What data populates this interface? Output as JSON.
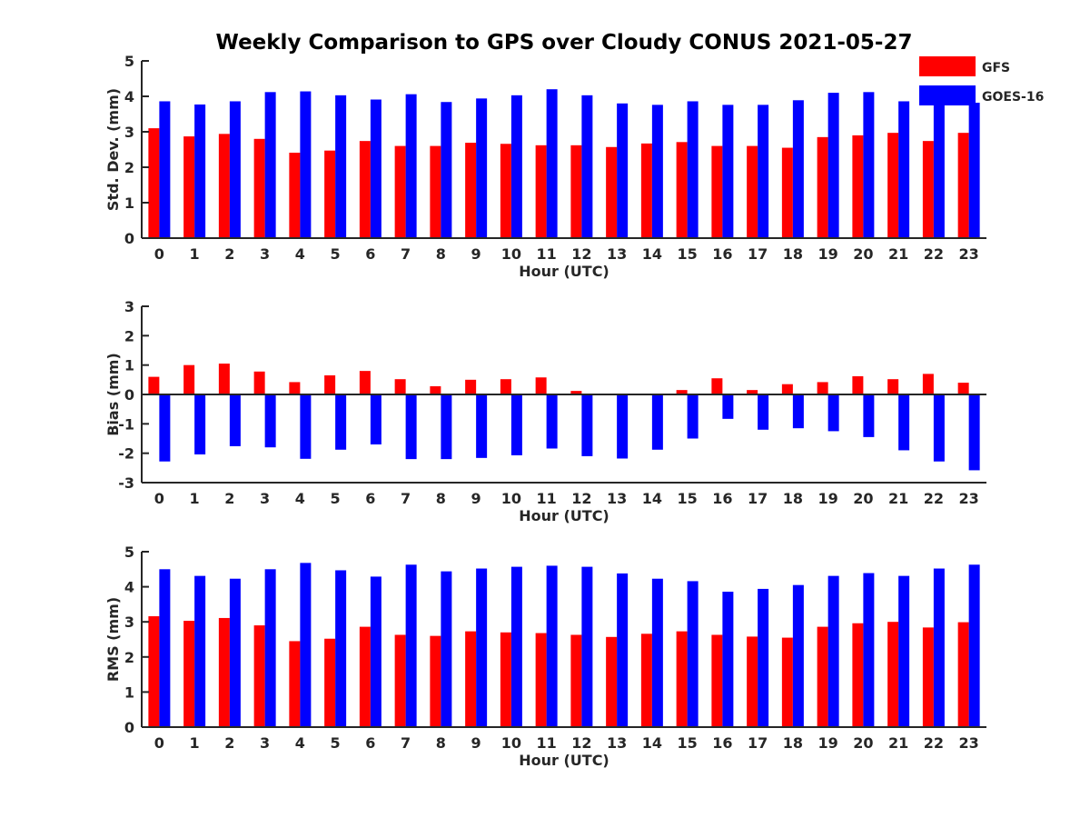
{
  "title": "Weekly Comparison to GPS over Cloudy CONUS 2021-05-27",
  "legend": [
    {
      "name": "GFS",
      "color": "#ff0000"
    },
    {
      "name": "GOES-16",
      "color": "#0000ff"
    }
  ],
  "chart_data": [
    {
      "type": "bar",
      "categories": [
        "0",
        "1",
        "2",
        "3",
        "4",
        "5",
        "6",
        "7",
        "8",
        "9",
        "10",
        "11",
        "12",
        "13",
        "14",
        "15",
        "16",
        "17",
        "18",
        "19",
        "20",
        "21",
        "22",
        "23"
      ],
      "xlabel": "Hour (UTC)",
      "ylabel": "Std. Dev. (mm)",
      "ylim": [
        0,
        5
      ],
      "yticks": [
        0,
        1,
        2,
        3,
        4,
        5
      ],
      "series": [
        {
          "name": "GFS",
          "color": "#ff0000",
          "values": [
            3.1,
            2.87,
            2.94,
            2.8,
            2.41,
            2.47,
            2.74,
            2.6,
            2.6,
            2.69,
            2.66,
            2.62,
            2.62,
            2.57,
            2.67,
            2.71,
            2.6,
            2.6,
            2.55,
            2.85,
            2.9,
            2.97,
            2.74,
            2.97
          ]
        },
        {
          "name": "GOES-16",
          "color": "#0000ff",
          "values": [
            3.86,
            3.77,
            3.86,
            4.12,
            4.14,
            4.03,
            3.91,
            4.06,
            3.84,
            3.94,
            4.03,
            4.2,
            4.03,
            3.8,
            3.76,
            3.86,
            3.76,
            3.76,
            3.89,
            4.1,
            4.12,
            3.86,
            3.88,
            3.82
          ]
        }
      ]
    },
    {
      "type": "bar",
      "categories": [
        "0",
        "1",
        "2",
        "3",
        "4",
        "5",
        "6",
        "7",
        "8",
        "9",
        "10",
        "11",
        "12",
        "13",
        "14",
        "15",
        "16",
        "17",
        "18",
        "19",
        "20",
        "21",
        "22",
        "23"
      ],
      "xlabel": "Hour (UTC)",
      "ylabel": "Bias (mm)",
      "ylim": [
        -3,
        3
      ],
      "yticks": [
        -3,
        -2,
        -1,
        0,
        1,
        2,
        3
      ],
      "series": [
        {
          "name": "GFS",
          "color": "#ff0000",
          "values": [
            0.6,
            1.0,
            1.05,
            0.78,
            0.42,
            0.65,
            0.8,
            0.52,
            0.28,
            0.5,
            0.52,
            0.58,
            0.12,
            0.0,
            0.0,
            0.15,
            0.55,
            0.15,
            0.35,
            0.42,
            0.62,
            0.52,
            0.7,
            0.4
          ]
        },
        {
          "name": "GOES-16",
          "color": "#0000ff",
          "values": [
            -2.28,
            -2.04,
            -1.76,
            -1.8,
            -2.19,
            -1.88,
            -1.7,
            -2.2,
            -2.2,
            -2.16,
            -2.07,
            -1.84,
            -2.1,
            -2.18,
            -1.88,
            -1.5,
            -0.83,
            -1.2,
            -1.15,
            -1.25,
            -1.45,
            -1.9,
            -2.28,
            -2.58
          ]
        }
      ]
    },
    {
      "type": "bar",
      "categories": [
        "0",
        "1",
        "2",
        "3",
        "4",
        "5",
        "6",
        "7",
        "8",
        "9",
        "10",
        "11",
        "12",
        "13",
        "14",
        "15",
        "16",
        "17",
        "18",
        "19",
        "20",
        "21",
        "22",
        "23"
      ],
      "xlabel": "Hour (UTC)",
      "ylabel": "RMS (mm)",
      "ylim": [
        0,
        5
      ],
      "yticks": [
        0,
        1,
        2,
        3,
        4,
        5
      ],
      "series": [
        {
          "name": "GFS",
          "color": "#ff0000",
          "values": [
            3.16,
            3.03,
            3.11,
            2.9,
            2.45,
            2.52,
            2.86,
            2.63,
            2.6,
            2.73,
            2.7,
            2.68,
            2.63,
            2.57,
            2.66,
            2.73,
            2.63,
            2.58,
            2.55,
            2.86,
            2.96,
            3.0,
            2.84,
            2.99
          ]
        },
        {
          "name": "GOES-16",
          "color": "#0000ff",
          "values": [
            4.5,
            4.31,
            4.23,
            4.5,
            4.68,
            4.47,
            4.29,
            4.63,
            4.44,
            4.52,
            4.57,
            4.6,
            4.57,
            4.38,
            4.23,
            4.16,
            3.86,
            3.94,
            4.05,
            4.31,
            4.39,
            4.31,
            4.52,
            4.63
          ]
        }
      ]
    }
  ]
}
